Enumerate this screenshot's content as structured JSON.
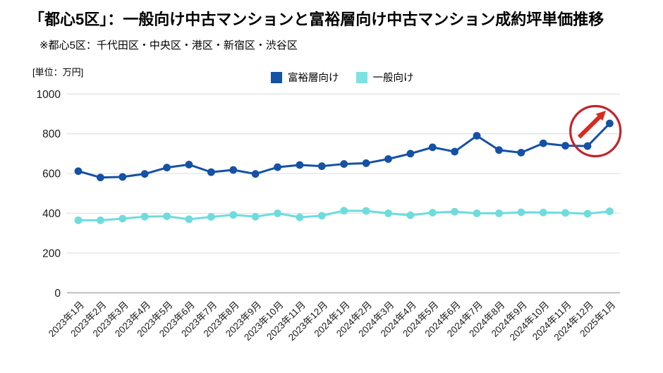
{
  "header": {
    "title": "「都心5区」：一般向け中古マンションと富裕層向け中古マンション成約坪単価推移",
    "subtitle": "※都心5区：千代田区・中央区・港区・新宿区・渋谷区",
    "unit_label": "[単位：万円]"
  },
  "legend": [
    {
      "label": "富裕層向け",
      "color": "#1352a5"
    },
    {
      "label": "一般向け",
      "color": "#7de2e2"
    }
  ],
  "chart_data": {
    "type": "line",
    "title": "「都心5区」：一般向け中古マンションと富裕層向け中古マンション成約坪単価推移",
    "xlabel": "",
    "ylabel": "万円",
    "ylim": [
      0,
      1000
    ],
    "yticks": [
      "0",
      "200",
      "400",
      "600",
      "800",
      "1000"
    ],
    "grid": true,
    "legend_position": "top-center",
    "categories": [
      "2023年1月",
      "2023年2月",
      "2023年3月",
      "2023年4月",
      "2023年5月",
      "2023年6月",
      "2023年7月",
      "2023年8月",
      "2023年9月",
      "2023年10月",
      "2023年11月",
      "2023年12月",
      "2024年1月",
      "2024年2月",
      "2024年3月",
      "2024年4月",
      "2024年5月",
      "2024年6月",
      "2024年7月",
      "2024年8月",
      "2024年9月",
      "2024年10月",
      "2024年11月",
      "2024年12月",
      "2025年1月"
    ],
    "series": [
      {
        "name": "富裕層向け",
        "color": "#1551a4",
        "values": [
          612,
          580,
          583,
          598,
          630,
          645,
          607,
          618,
          598,
          632,
          643,
          637,
          648,
          652,
          673,
          700,
          732,
          710,
          790,
          718,
          705,
          752,
          740,
          738,
          852
        ]
      },
      {
        "name": "一般向け",
        "color": "#6fdcdc",
        "values": [
          365,
          365,
          373,
          383,
          385,
          370,
          382,
          392,
          383,
          400,
          380,
          388,
          413,
          412,
          400,
          390,
          403,
          408,
          400,
          400,
          405,
          404,
          402,
          398,
          410
        ]
      }
    ],
    "annotation": {
      "type": "circle-with-arrow",
      "target_category": "2025年1月",
      "circle_color": "#c3242c",
      "arrow_color": "#da291f"
    }
  }
}
